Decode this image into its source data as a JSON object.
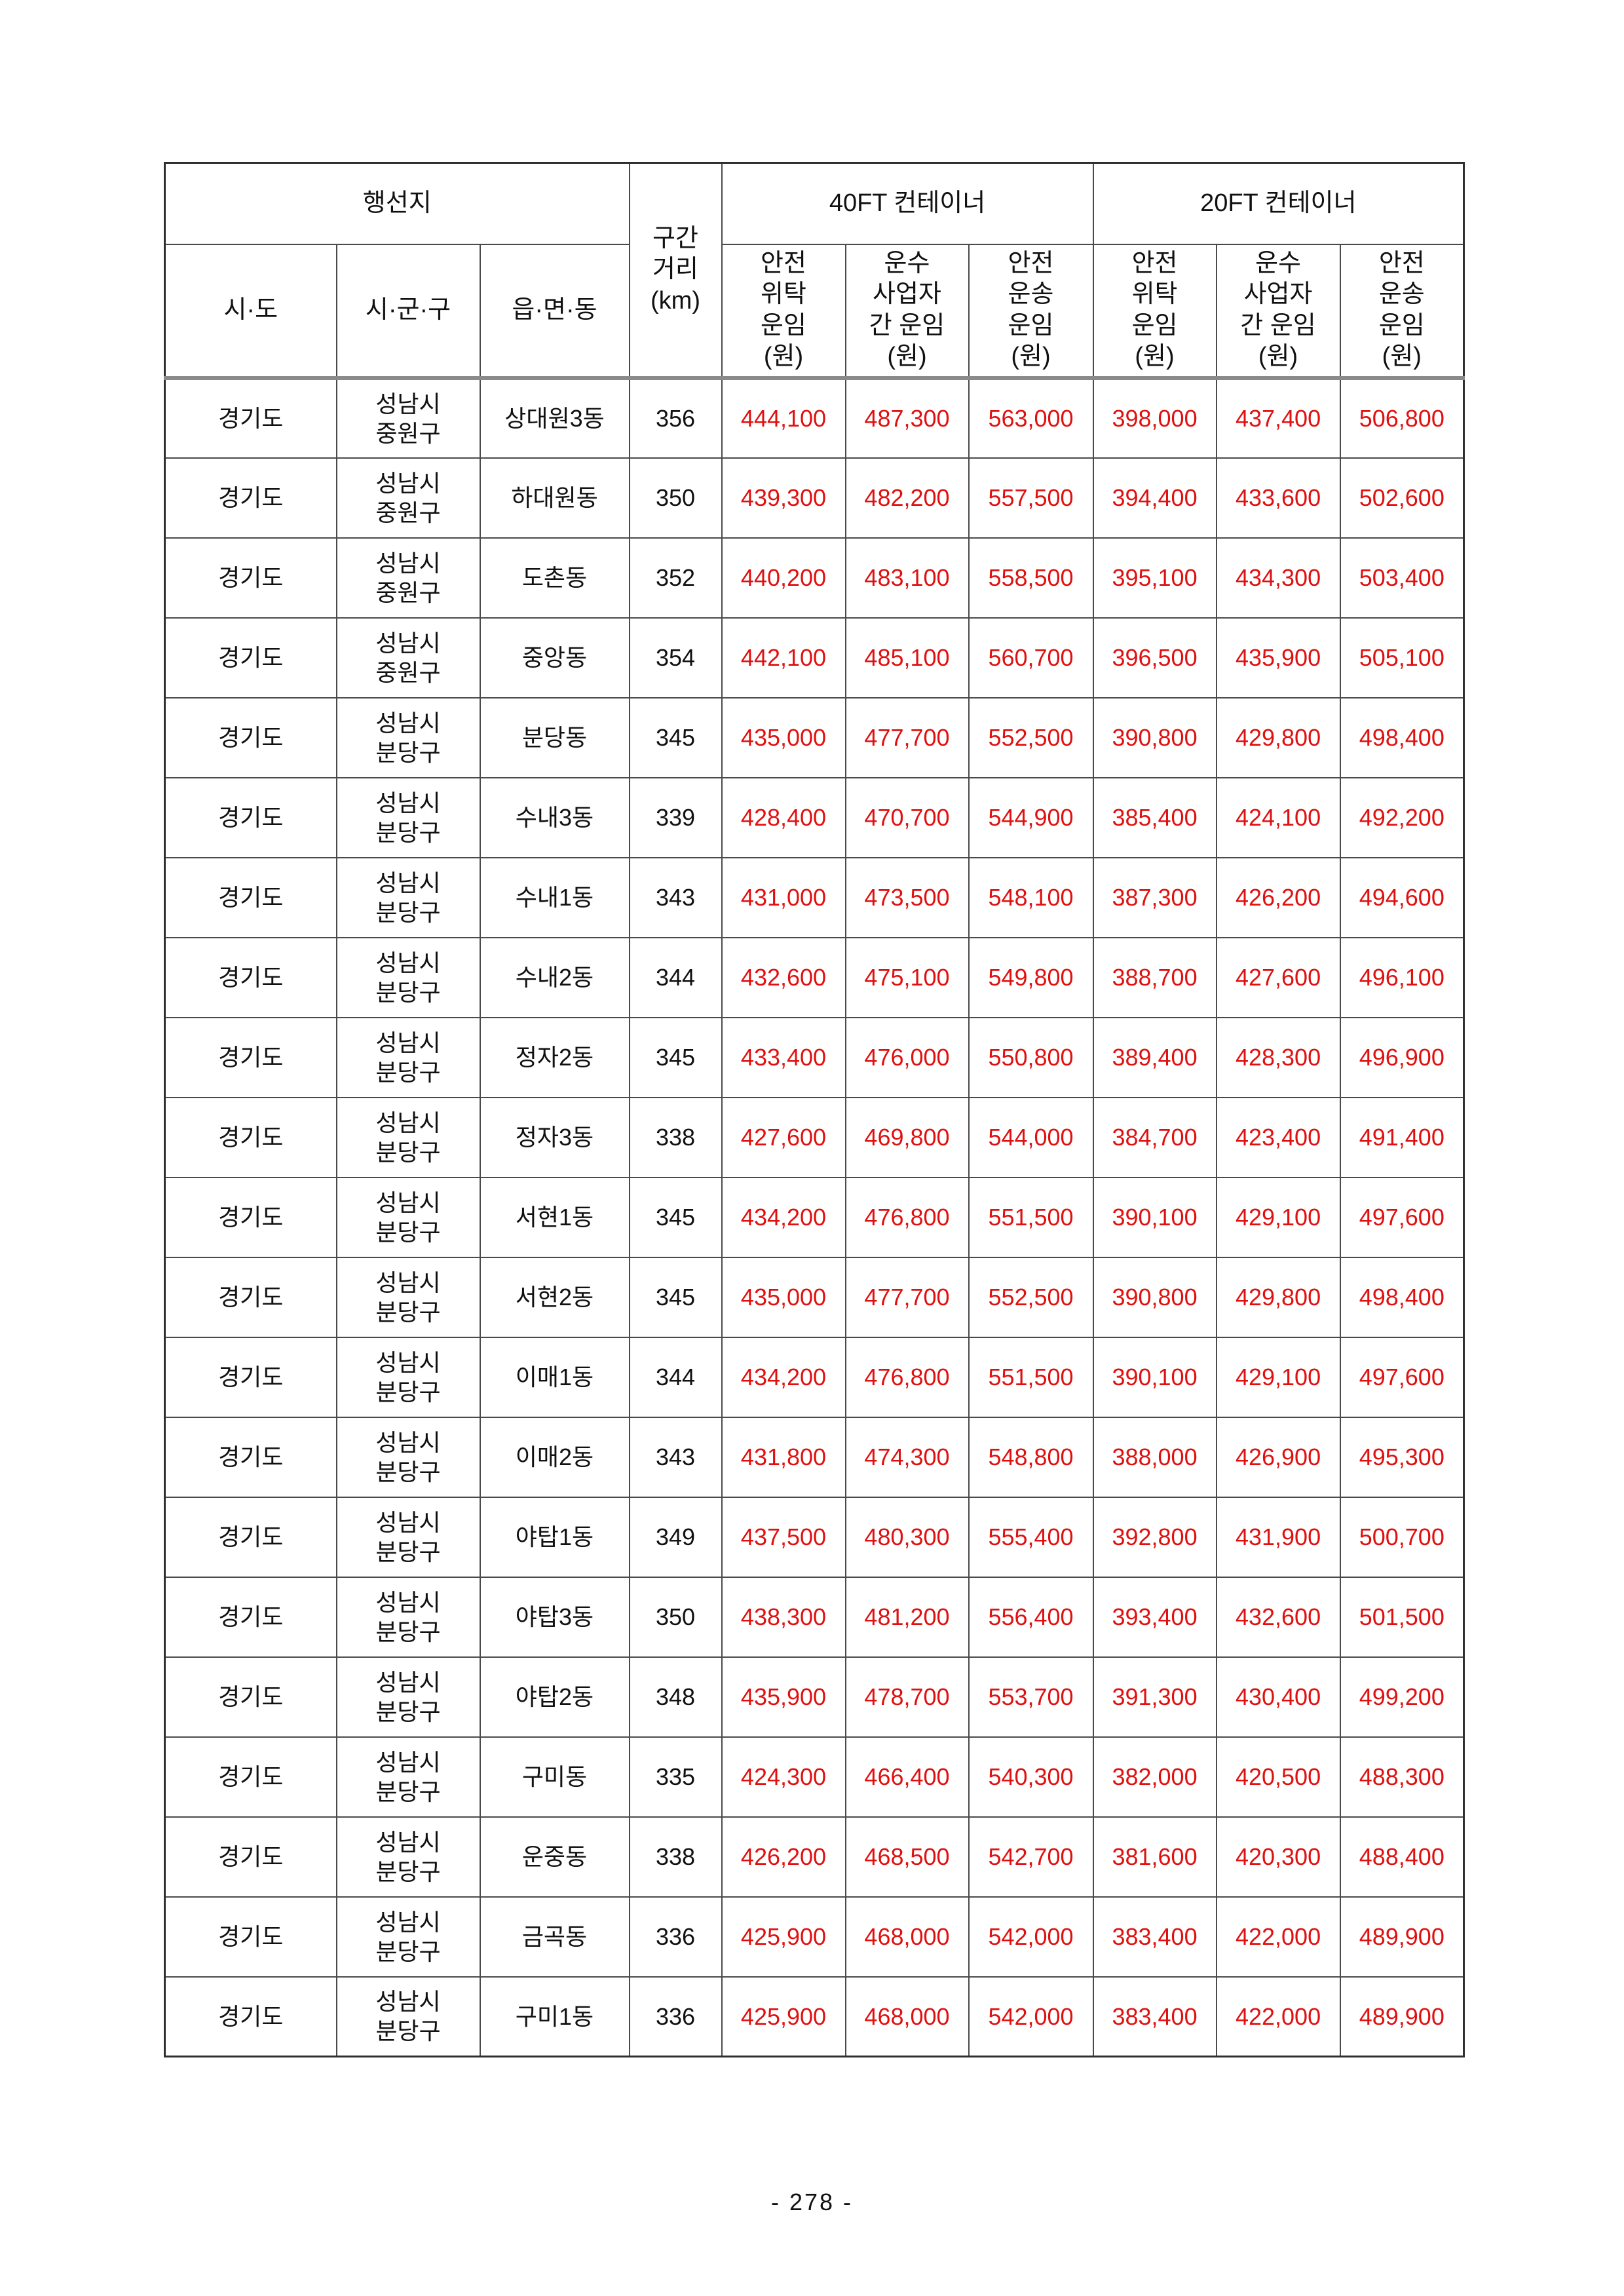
{
  "page": {
    "number_label": "- 278 -"
  },
  "colors": {
    "fare_text": "#e11010",
    "plain_text": "#111111",
    "grid_line": "#4a4a4a",
    "header_separator": "#8a8a8a",
    "background": "#ffffff"
  },
  "table": {
    "header": {
      "destination": "행선지",
      "sido": "시·도",
      "sigungu": "시·군·구",
      "eupmyeondong": "읍·면·동",
      "distance": "구간\n거리\n(km)",
      "ft40": "40FT 컨테이너",
      "ft20": "20FT 컨테이너",
      "safe_consign": "안전\n위탁\n운임\n(원)",
      "carrier_between": "운수\n사업자\n간 운임\n(원)",
      "safe_transport": "안전\n운송\n운임\n(원)"
    },
    "rows": [
      {
        "sido": "경기도",
        "sigungu": "성남시\n중원구",
        "dong": "상대원3동",
        "distance": "356",
        "fares": [
          "444,100",
          "487,300",
          "563,000",
          "398,000",
          "437,400",
          "506,800"
        ]
      },
      {
        "sido": "경기도",
        "sigungu": "성남시\n중원구",
        "dong": "하대원동",
        "distance": "350",
        "fares": [
          "439,300",
          "482,200",
          "557,500",
          "394,400",
          "433,600",
          "502,600"
        ]
      },
      {
        "sido": "경기도",
        "sigungu": "성남시\n중원구",
        "dong": "도촌동",
        "distance": "352",
        "fares": [
          "440,200",
          "483,100",
          "558,500",
          "395,100",
          "434,300",
          "503,400"
        ]
      },
      {
        "sido": "경기도",
        "sigungu": "성남시\n중원구",
        "dong": "중앙동",
        "distance": "354",
        "fares": [
          "442,100",
          "485,100",
          "560,700",
          "396,500",
          "435,900",
          "505,100"
        ]
      },
      {
        "sido": "경기도",
        "sigungu": "성남시\n분당구",
        "dong": "분당동",
        "distance": "345",
        "fares": [
          "435,000",
          "477,700",
          "552,500",
          "390,800",
          "429,800",
          "498,400"
        ]
      },
      {
        "sido": "경기도",
        "sigungu": "성남시\n분당구",
        "dong": "수내3동",
        "distance": "339",
        "fares": [
          "428,400",
          "470,700",
          "544,900",
          "385,400",
          "424,100",
          "492,200"
        ]
      },
      {
        "sido": "경기도",
        "sigungu": "성남시\n분당구",
        "dong": "수내1동",
        "distance": "343",
        "fares": [
          "431,000",
          "473,500",
          "548,100",
          "387,300",
          "426,200",
          "494,600"
        ]
      },
      {
        "sido": "경기도",
        "sigungu": "성남시\n분당구",
        "dong": "수내2동",
        "distance": "344",
        "fares": [
          "432,600",
          "475,100",
          "549,800",
          "388,700",
          "427,600",
          "496,100"
        ]
      },
      {
        "sido": "경기도",
        "sigungu": "성남시\n분당구",
        "dong": "정자2동",
        "distance": "345",
        "fares": [
          "433,400",
          "476,000",
          "550,800",
          "389,400",
          "428,300",
          "496,900"
        ]
      },
      {
        "sido": "경기도",
        "sigungu": "성남시\n분당구",
        "dong": "정자3동",
        "distance": "338",
        "fares": [
          "427,600",
          "469,800",
          "544,000",
          "384,700",
          "423,400",
          "491,400"
        ]
      },
      {
        "sido": "경기도",
        "sigungu": "성남시\n분당구",
        "dong": "서현1동",
        "distance": "345",
        "fares": [
          "434,200",
          "476,800",
          "551,500",
          "390,100",
          "429,100",
          "497,600"
        ]
      },
      {
        "sido": "경기도",
        "sigungu": "성남시\n분당구",
        "dong": "서현2동",
        "distance": "345",
        "fares": [
          "435,000",
          "477,700",
          "552,500",
          "390,800",
          "429,800",
          "498,400"
        ]
      },
      {
        "sido": "경기도",
        "sigungu": "성남시\n분당구",
        "dong": "이매1동",
        "distance": "344",
        "fares": [
          "434,200",
          "476,800",
          "551,500",
          "390,100",
          "429,100",
          "497,600"
        ]
      },
      {
        "sido": "경기도",
        "sigungu": "성남시\n분당구",
        "dong": "이매2동",
        "distance": "343",
        "fares": [
          "431,800",
          "474,300",
          "548,800",
          "388,000",
          "426,900",
          "495,300"
        ]
      },
      {
        "sido": "경기도",
        "sigungu": "성남시\n분당구",
        "dong": "야탑1동",
        "distance": "349",
        "fares": [
          "437,500",
          "480,300",
          "555,400",
          "392,800",
          "431,900",
          "500,700"
        ]
      },
      {
        "sido": "경기도",
        "sigungu": "성남시\n분당구",
        "dong": "야탑3동",
        "distance": "350",
        "fares": [
          "438,300",
          "481,200",
          "556,400",
          "393,400",
          "432,600",
          "501,500"
        ]
      },
      {
        "sido": "경기도",
        "sigungu": "성남시\n분당구",
        "dong": "야탑2동",
        "distance": "348",
        "fares": [
          "435,900",
          "478,700",
          "553,700",
          "391,300",
          "430,400",
          "499,200"
        ]
      },
      {
        "sido": "경기도",
        "sigungu": "성남시\n분당구",
        "dong": "구미동",
        "distance": "335",
        "fares": [
          "424,300",
          "466,400",
          "540,300",
          "382,000",
          "420,500",
          "488,300"
        ]
      },
      {
        "sido": "경기도",
        "sigungu": "성남시\n분당구",
        "dong": "운중동",
        "distance": "338",
        "fares": [
          "426,200",
          "468,500",
          "542,700",
          "381,600",
          "420,300",
          "488,400"
        ]
      },
      {
        "sido": "경기도",
        "sigungu": "성남시\n분당구",
        "dong": "금곡동",
        "distance": "336",
        "fares": [
          "425,900",
          "468,000",
          "542,000",
          "383,400",
          "422,000",
          "489,900"
        ]
      },
      {
        "sido": "경기도",
        "sigungu": "성남시\n분당구",
        "dong": "구미1동",
        "distance": "336",
        "fares": [
          "425,900",
          "468,000",
          "542,000",
          "383,400",
          "422,000",
          "489,900"
        ]
      }
    ]
  }
}
